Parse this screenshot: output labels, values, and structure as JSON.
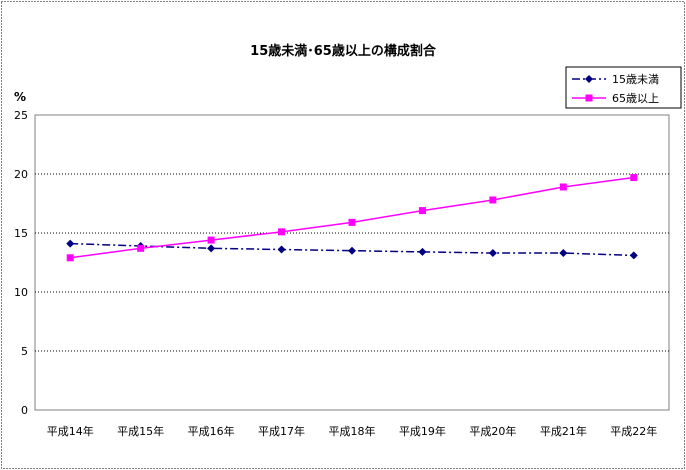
{
  "chart_data": {
    "type": "line",
    "title": "15歳未満･65歳以上の構成割合",
    "ylabel": "%",
    "xlabel": "",
    "categories": [
      "平成14年",
      "平成15年",
      "平成16年",
      "平成17年",
      "平成18年",
      "平成19年",
      "平成20年",
      "平成21年",
      "平成22年"
    ],
    "ylim": [
      0,
      25
    ],
    "yticks": [
      "0",
      "5",
      "10",
      "15",
      "20",
      "25"
    ],
    "grid": "horizontal dotted",
    "legend_position": "top-right",
    "series": [
      {
        "name": "15歳未満",
        "color": "#000080",
        "marker": "diamond",
        "line_style": "dash-dot",
        "values": [
          14.1,
          13.9,
          13.7,
          13.6,
          13.5,
          13.4,
          13.3,
          13.3,
          13.1
        ]
      },
      {
        "name": "65歳以上",
        "color": "#FF00FF",
        "marker": "square",
        "line_style": "solid",
        "values": [
          12.9,
          13.7,
          14.4,
          15.1,
          15.9,
          16.9,
          17.8,
          18.9,
          19.7
        ]
      }
    ]
  }
}
